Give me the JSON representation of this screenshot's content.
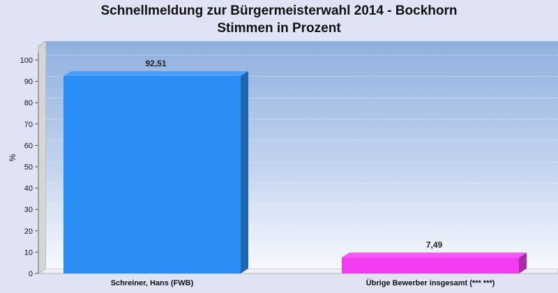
{
  "chart_data": {
    "type": "bar",
    "title": "Schnellmeldung zur Bürgermeisterwahl 2014 - Bockhorn",
    "subtitle": "Stimmen in Prozent",
    "ylabel": "%",
    "xlabel": "",
    "ylim": [
      0,
      105
    ],
    "yticks": [
      0,
      10,
      20,
      30,
      40,
      50,
      60,
      70,
      80,
      90,
      100
    ],
    "categories": [
      "Schreiner, Hans (FWB)",
      "Übrige Bewerber insgesamt (***  ***)"
    ],
    "values": [
      92.51,
      7.49
    ],
    "value_labels": [
      "92,51",
      "7,49"
    ],
    "colors": [
      "#2b8ef6",
      "#f23cf2"
    ],
    "grid": true,
    "legend": "none"
  }
}
